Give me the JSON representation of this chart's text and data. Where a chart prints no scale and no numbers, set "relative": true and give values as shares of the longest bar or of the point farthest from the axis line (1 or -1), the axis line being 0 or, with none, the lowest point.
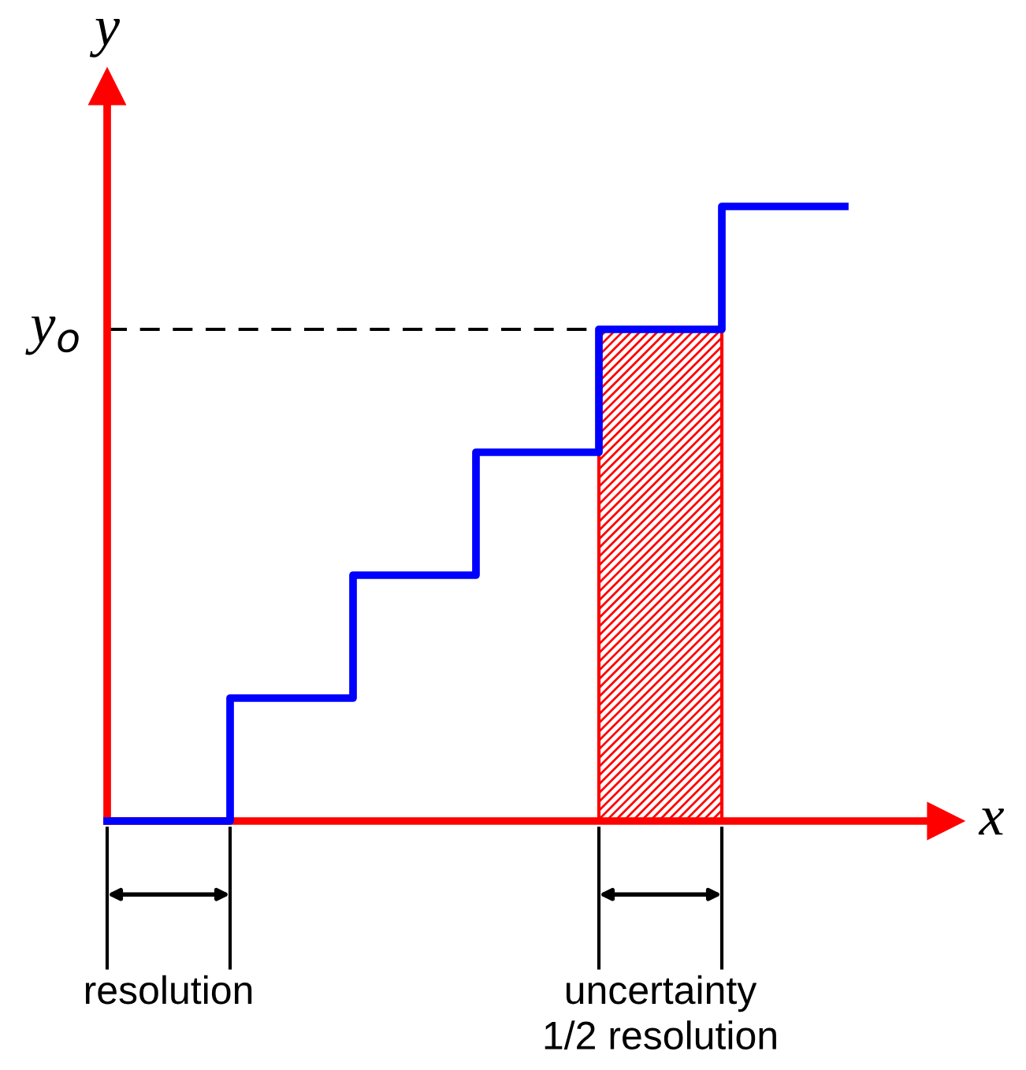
{
  "chart_data": {
    "type": "step",
    "relative": true,
    "xlabel": "x",
    "ylabel": "y",
    "categories": [
      null,
      null,
      null,
      null,
      null,
      null,
      null
    ],
    "series": [
      {
        "color": "#0000ff",
        "values": [
          0,
          0.2,
          0.4,
          0.6,
          0.8,
          1,
          1
        ]
      },
      {
        "type": "area",
        "color": "#ff0000",
        "values": [
          null,
          null,
          null,
          null,
          0.8,
          0.8,
          null
        ]
      }
    ],
    "ref_lines": [
      {
        "axis": "y",
        "value": 0.8,
        "label": "y$_{o}$",
        "color": "#000000",
        "line_style": "dashed"
      }
    ],
    "annotations": [
      "resolution",
      "uncertainty\n1/2 resolution"
    ]
  }
}
